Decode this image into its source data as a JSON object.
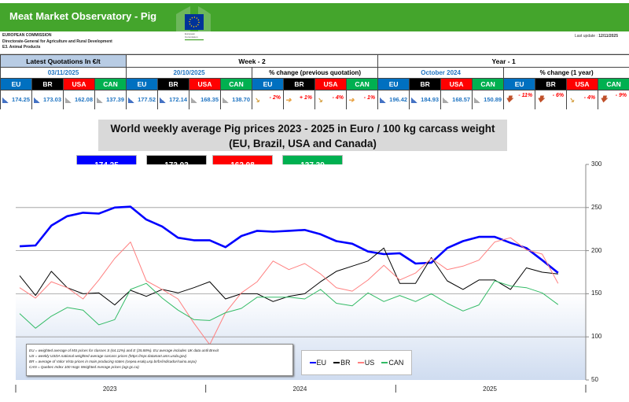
{
  "header": {
    "title": "Meat Market Observatory - Pig",
    "org_lines": [
      "EUROPEAN COMMISSION",
      "Directorate-General for Agriculture and Rural Development",
      "E3. Animal Products"
    ],
    "logo_text": "European Commission",
    "last_update_label": "Last update :",
    "last_update": "12/11/2025"
  },
  "table": {
    "latest_label": "Latest Quotations In €/t",
    "week_label": "Week - 2",
    "year_label": "Year - 1",
    "latest_date": "03/11/2025",
    "week_date": "20/10/2025",
    "week_pct_label": "% change (previous quotation)",
    "year_date": "October 2024",
    "year_pct_label": "% change (1 year)",
    "countries": [
      "EU",
      "BR",
      "USA",
      "CAN"
    ],
    "latest_values": [
      "174.25",
      "173.03",
      "162.08",
      "137.39"
    ],
    "week_values": [
      "177.52",
      "172.14",
      "168.35",
      "138.70"
    ],
    "week_pct": [
      "- 2%",
      "+ 1%",
      "- 4%",
      "- 1%"
    ],
    "week_pct_icons": [
      "arrow-down-right-icon",
      "arrow-right-icon",
      "arrow-down-right-icon",
      "arrow-right-icon"
    ],
    "year_values": [
      "196.42",
      "184.93",
      "168.57",
      "150.89"
    ],
    "year_pct": [
      "- 11%",
      "- 6%",
      "- 4%",
      "- 9%"
    ],
    "year_pct_icons": [
      "arrow-down-icon",
      "arrow-down-icon",
      "arrow-down-right-icon",
      "arrow-down-icon"
    ]
  },
  "colors": {
    "banner": "#44a52c",
    "EU": "#0000ff",
    "BR": "#000000",
    "US": "#ff8080",
    "CAN": "#33bb66"
  },
  "chart_data": {
    "type": "line",
    "title": "World weekly average Pig prices 2023 - 2025  in Euro / 100 kg carcass weight",
    "subtitle": "(EU, Brazil, USA and Canada)",
    "current_values": [
      "174.25",
      "173.03",
      "162.08",
      "137.39"
    ],
    "x_tick_labels": [
      "2023",
      "2024",
      "2025"
    ],
    "y_ticks": [
      50,
      100,
      150,
      200,
      250,
      300
    ],
    "ylim": [
      50,
      300
    ],
    "y_axis_side": "right",
    "grid": true,
    "legend_placement": "bottom-center",
    "x": [
      "2023-01",
      "2023-02",
      "2023-03",
      "2023-04",
      "2023-05",
      "2023-06",
      "2023-07",
      "2023-08",
      "2023-09",
      "2023-10",
      "2023-11",
      "2023-12",
      "2024-01",
      "2024-02",
      "2024-03",
      "2024-04",
      "2024-05",
      "2024-06",
      "2024-07",
      "2024-08",
      "2024-09",
      "2024-10",
      "2024-11",
      "2024-12",
      "2025-01",
      "2025-02",
      "2025-03",
      "2025-04",
      "2025-05",
      "2025-06",
      "2025-07",
      "2025-08",
      "2025-09",
      "2025-10",
      "2025-11"
    ],
    "series": [
      {
        "name": "EU",
        "color": "#0000ff",
        "values": [
          205,
          206,
          229,
          240,
          244,
          243,
          250,
          251,
          236,
          228,
          215,
          212,
          212,
          204,
          217,
          223,
          222,
          223,
          224,
          219,
          211,
          208,
          199,
          196,
          197,
          185,
          186,
          203,
          211,
          216,
          216,
          209,
          203,
          189,
          174.25
        ]
      },
      {
        "name": "BR",
        "color": "#000000",
        "values": [
          171,
          148,
          176,
          157,
          150,
          151,
          137,
          154,
          147,
          155,
          151,
          157,
          164,
          144,
          150,
          150,
          141,
          147,
          150,
          164,
          176,
          182,
          188,
          203,
          162,
          162,
          192,
          165,
          155,
          166,
          166,
          155,
          180,
          175,
          173.03
        ]
      },
      {
        "name": "US",
        "color": "#ff8080",
        "values": [
          157,
          145,
          164,
          157,
          144,
          166,
          191,
          210,
          165,
          155,
          144,
          116,
          91,
          128,
          151,
          164,
          188,
          178,
          185,
          173,
          157,
          153,
          166,
          183,
          166,
          174,
          191,
          178,
          182,
          189,
          210,
          215,
          201,
          196,
          162.08
        ]
      },
      {
        "name": "CAN",
        "color": "#33bb66",
        "values": [
          127,
          110,
          124,
          134,
          131,
          114,
          120,
          155,
          162,
          145,
          131,
          120,
          119,
          128,
          133,
          146,
          146,
          146,
          144,
          155,
          139,
          136,
          151,
          141,
          148,
          141,
          150,
          139,
          130,
          137,
          165,
          159,
          157,
          151,
          137.39
        ]
      }
    ],
    "notes": [
      "EU    = weighted average of MS prices for classes S (64.12%) and E (35.88%). EU average includes UK data  until Brexit",
      "US    = weekly USDA national weighted average carcass prices (https://mpr.datamart.ams.usda.gov)",
      "BR    = average of Valor Vista prices in main producing states (cepea.esalq.usp.br/br/indicador/suino.aspx)",
      "CAN = Quebec Index 100 Hogs Weighted Average prices (agr.gc.ca)"
    ]
  }
}
